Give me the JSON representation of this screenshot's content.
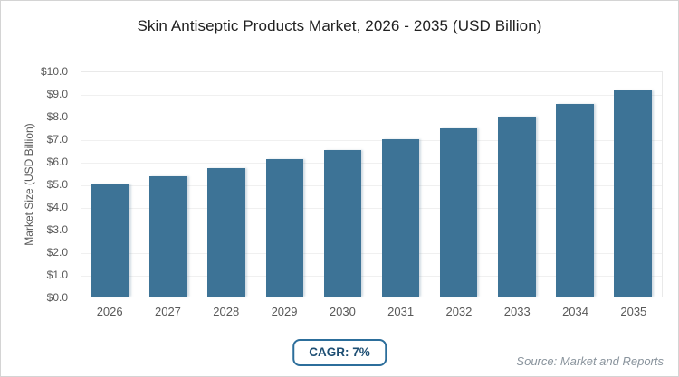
{
  "card": {
    "title": "Skin Antiseptic Products Market, 2026 - 2035 (USD Billion)"
  },
  "chart_data": {
    "type": "bar",
    "title": "Skin Antiseptic Products Market, 2026 - 2035 (USD Billion)",
    "categories": [
      "2026",
      "2027",
      "2028",
      "2029",
      "2030",
      "2031",
      "2032",
      "2033",
      "2034",
      "2035"
    ],
    "values": [
      5.0,
      5.35,
      5.72,
      6.13,
      6.55,
      7.01,
      7.5,
      8.03,
      8.59,
      9.19
    ],
    "xlabel": "",
    "ylabel": "Market Size (USD Billion)",
    "ylim": [
      0,
      10
    ],
    "ytick_step": 1,
    "ytick_prefix": "$",
    "ytick_decimals": 1,
    "grid": true,
    "legend_position": "none",
    "bar_color": "#3d7396"
  },
  "footer": {
    "cagr_badge": "CAGR: 7%",
    "source_note": "Source: Market and Reports"
  },
  "colors": {
    "bar": "#3d7396",
    "badge_border": "#2c6e9b",
    "badge_text": "#1d4e73",
    "axis_text": "#595959",
    "source_text": "#8a949d",
    "gridline": "#f0f0f0"
  }
}
